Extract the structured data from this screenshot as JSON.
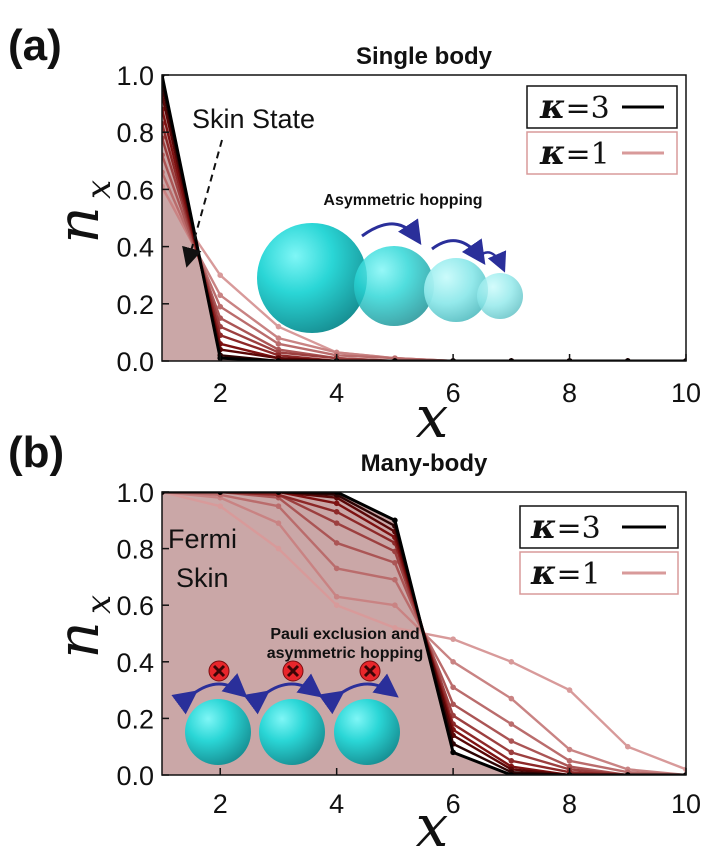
{
  "colors": {
    "fill": "#c7a2a2",
    "kappa3": "#000000",
    "kappa1": "#d89a9a",
    "sphere": "#2ad6d6",
    "hop_arrow": "#2a2f9a",
    "forbid": "#e8262b"
  },
  "chart_data": [
    {
      "panel": "(a)",
      "type": "line",
      "title": "Single body",
      "xlabel": "x",
      "ylabel": "n",
      "ylabel_sub": "x",
      "xlim": [
        1,
        10
      ],
      "ylim": [
        0,
        1
      ],
      "xticks": [
        "2",
        "4",
        "6",
        "8",
        "10"
      ],
      "yticks": [
        "0.0",
        "0.2",
        "0.4",
        "0.6",
        "0.8",
        "1.0"
      ],
      "legend": {
        "position": "top-right",
        "entries": [
          {
            "kappa": "κ",
            "eq": "=3",
            "color": "#000000"
          },
          {
            "kappa": "κ",
            "eq": "=1",
            "color": "#d89a9a"
          }
        ]
      },
      "annotations": [
        "Skin State",
        "Asymmetric hopping"
      ],
      "series": [
        {
          "x": [
            1,
            2,
            3,
            4,
            5,
            6,
            7,
            8,
            9,
            10
          ],
          "values": [
            1.0,
            0.01,
            0.0,
            0.0,
            0.0,
            0.0,
            0.0,
            0.0,
            0.0,
            0.0
          ]
        },
        {
          "x": [
            1,
            2,
            3,
            4,
            5,
            6,
            7,
            8,
            9,
            10
          ],
          "values": [
            0.97,
            0.02,
            0.0,
            0.0,
            0.0,
            0.0,
            0.0,
            0.0,
            0.0,
            0.0
          ]
        },
        {
          "x": [
            1,
            2,
            3,
            4,
            5,
            6,
            7,
            8,
            9,
            10
          ],
          "values": [
            0.93,
            0.04,
            0.01,
            0.0,
            0.0,
            0.0,
            0.0,
            0.0,
            0.0,
            0.0
          ]
        },
        {
          "x": [
            1,
            2,
            3,
            4,
            5,
            6,
            7,
            8,
            9,
            10
          ],
          "values": [
            0.88,
            0.06,
            0.01,
            0.0,
            0.0,
            0.0,
            0.0,
            0.0,
            0.0,
            0.0
          ]
        },
        {
          "x": [
            1,
            2,
            3,
            4,
            5,
            6,
            7,
            8,
            9,
            10
          ],
          "values": [
            0.83,
            0.09,
            0.02,
            0.0,
            0.0,
            0.0,
            0.0,
            0.0,
            0.0,
            0.0
          ]
        },
        {
          "x": [
            1,
            2,
            3,
            4,
            5,
            6,
            7,
            8,
            9,
            10
          ],
          "values": [
            0.78,
            0.12,
            0.03,
            0.01,
            0.0,
            0.0,
            0.0,
            0.0,
            0.0,
            0.0
          ]
        },
        {
          "x": [
            1,
            2,
            3,
            4,
            5,
            6,
            7,
            8,
            9,
            10
          ],
          "values": [
            0.72,
            0.15,
            0.04,
            0.01,
            0.0,
            0.0,
            0.0,
            0.0,
            0.0,
            0.0
          ]
        },
        {
          "x": [
            1,
            2,
            3,
            4,
            5,
            6,
            7,
            8,
            9,
            10
          ],
          "values": [
            0.66,
            0.19,
            0.06,
            0.02,
            0.01,
            0.0,
            0.0,
            0.0,
            0.0,
            0.0
          ]
        },
        {
          "x": [
            1,
            2,
            3,
            4,
            5,
            6,
            7,
            8,
            9,
            10
          ],
          "values": [
            0.61,
            0.23,
            0.08,
            0.03,
            0.01,
            0.0,
            0.0,
            0.0,
            0.0,
            0.0
          ]
        },
        {
          "x": [
            1,
            2,
            3,
            4,
            5,
            6,
            7,
            8,
            9,
            10
          ],
          "values": [
            0.6,
            0.3,
            0.12,
            0.03,
            0.01,
            0.0,
            0.0,
            0.0,
            0.0,
            0.0
          ]
        }
      ]
    },
    {
      "panel": "(b)",
      "type": "line",
      "title": "Many-body",
      "xlabel": "x",
      "ylabel": "n",
      "ylabel_sub": "x",
      "xlim": [
        1,
        10
      ],
      "ylim": [
        0,
        1
      ],
      "xticks": [
        "2",
        "4",
        "6",
        "8",
        "10"
      ],
      "yticks": [
        "0.0",
        "0.2",
        "0.4",
        "0.6",
        "0.8",
        "1.0"
      ],
      "legend": {
        "position": "top-right",
        "entries": [
          {
            "kappa": "κ",
            "eq": "=3",
            "color": "#000000"
          },
          {
            "kappa": "κ",
            "eq": "=1",
            "color": "#d89a9a"
          }
        ]
      },
      "annotations": [
        "Fermi",
        "Skin",
        "Pauli exclusion and",
        "asymmetric hopping"
      ],
      "series": [
        {
          "x": [
            1,
            2,
            3,
            4,
            5,
            6,
            7,
            8,
            9,
            10
          ],
          "values": [
            1.0,
            1.0,
            1.0,
            1.0,
            0.9,
            0.08,
            0.0,
            0.0,
            0.0,
            0.0
          ]
        },
        {
          "x": [
            1,
            2,
            3,
            4,
            5,
            6,
            7,
            8,
            9,
            10
          ],
          "values": [
            1.0,
            1.0,
            1.0,
            0.99,
            0.88,
            0.11,
            0.01,
            0.0,
            0.0,
            0.0
          ]
        },
        {
          "x": [
            1,
            2,
            3,
            4,
            5,
            6,
            7,
            8,
            9,
            10
          ],
          "values": [
            1.0,
            1.0,
            1.0,
            0.98,
            0.86,
            0.14,
            0.02,
            0.0,
            0.0,
            0.0
          ]
        },
        {
          "x": [
            1,
            2,
            3,
            4,
            5,
            6,
            7,
            8,
            9,
            10
          ],
          "values": [
            1.0,
            1.0,
            1.0,
            0.96,
            0.84,
            0.16,
            0.03,
            0.0,
            0.0,
            0.0
          ]
        },
        {
          "x": [
            1,
            2,
            3,
            4,
            5,
            6,
            7,
            8,
            9,
            10
          ],
          "values": [
            1.0,
            1.0,
            0.99,
            0.93,
            0.82,
            0.18,
            0.05,
            0.01,
            0.0,
            0.0
          ]
        },
        {
          "x": [
            1,
            2,
            3,
            4,
            5,
            6,
            7,
            8,
            9,
            10
          ],
          "values": [
            1.0,
            1.0,
            0.99,
            0.89,
            0.79,
            0.21,
            0.08,
            0.02,
            0.0,
            0.0
          ]
        },
        {
          "x": [
            1,
            2,
            3,
            4,
            5,
            6,
            7,
            8,
            9,
            10
          ],
          "values": [
            1.0,
            1.0,
            0.98,
            0.82,
            0.75,
            0.25,
            0.12,
            0.03,
            0.0,
            0.0
          ]
        },
        {
          "x": [
            1,
            2,
            3,
            4,
            5,
            6,
            7,
            8,
            9,
            10
          ],
          "values": [
            1.0,
            0.99,
            0.95,
            0.73,
            0.69,
            0.31,
            0.18,
            0.05,
            0.01,
            0.0
          ]
        },
        {
          "x": [
            1,
            2,
            3,
            4,
            5,
            6,
            7,
            8,
            9,
            10
          ],
          "values": [
            1.0,
            0.98,
            0.89,
            0.63,
            0.6,
            0.4,
            0.27,
            0.09,
            0.02,
            0.0
          ]
        },
        {
          "x": [
            1,
            2,
            3,
            4,
            5,
            6,
            7,
            8,
            9,
            10
          ],
          "values": [
            1.0,
            0.95,
            0.8,
            0.6,
            0.52,
            0.48,
            0.4,
            0.3,
            0.1,
            0.02
          ]
        }
      ]
    }
  ]
}
